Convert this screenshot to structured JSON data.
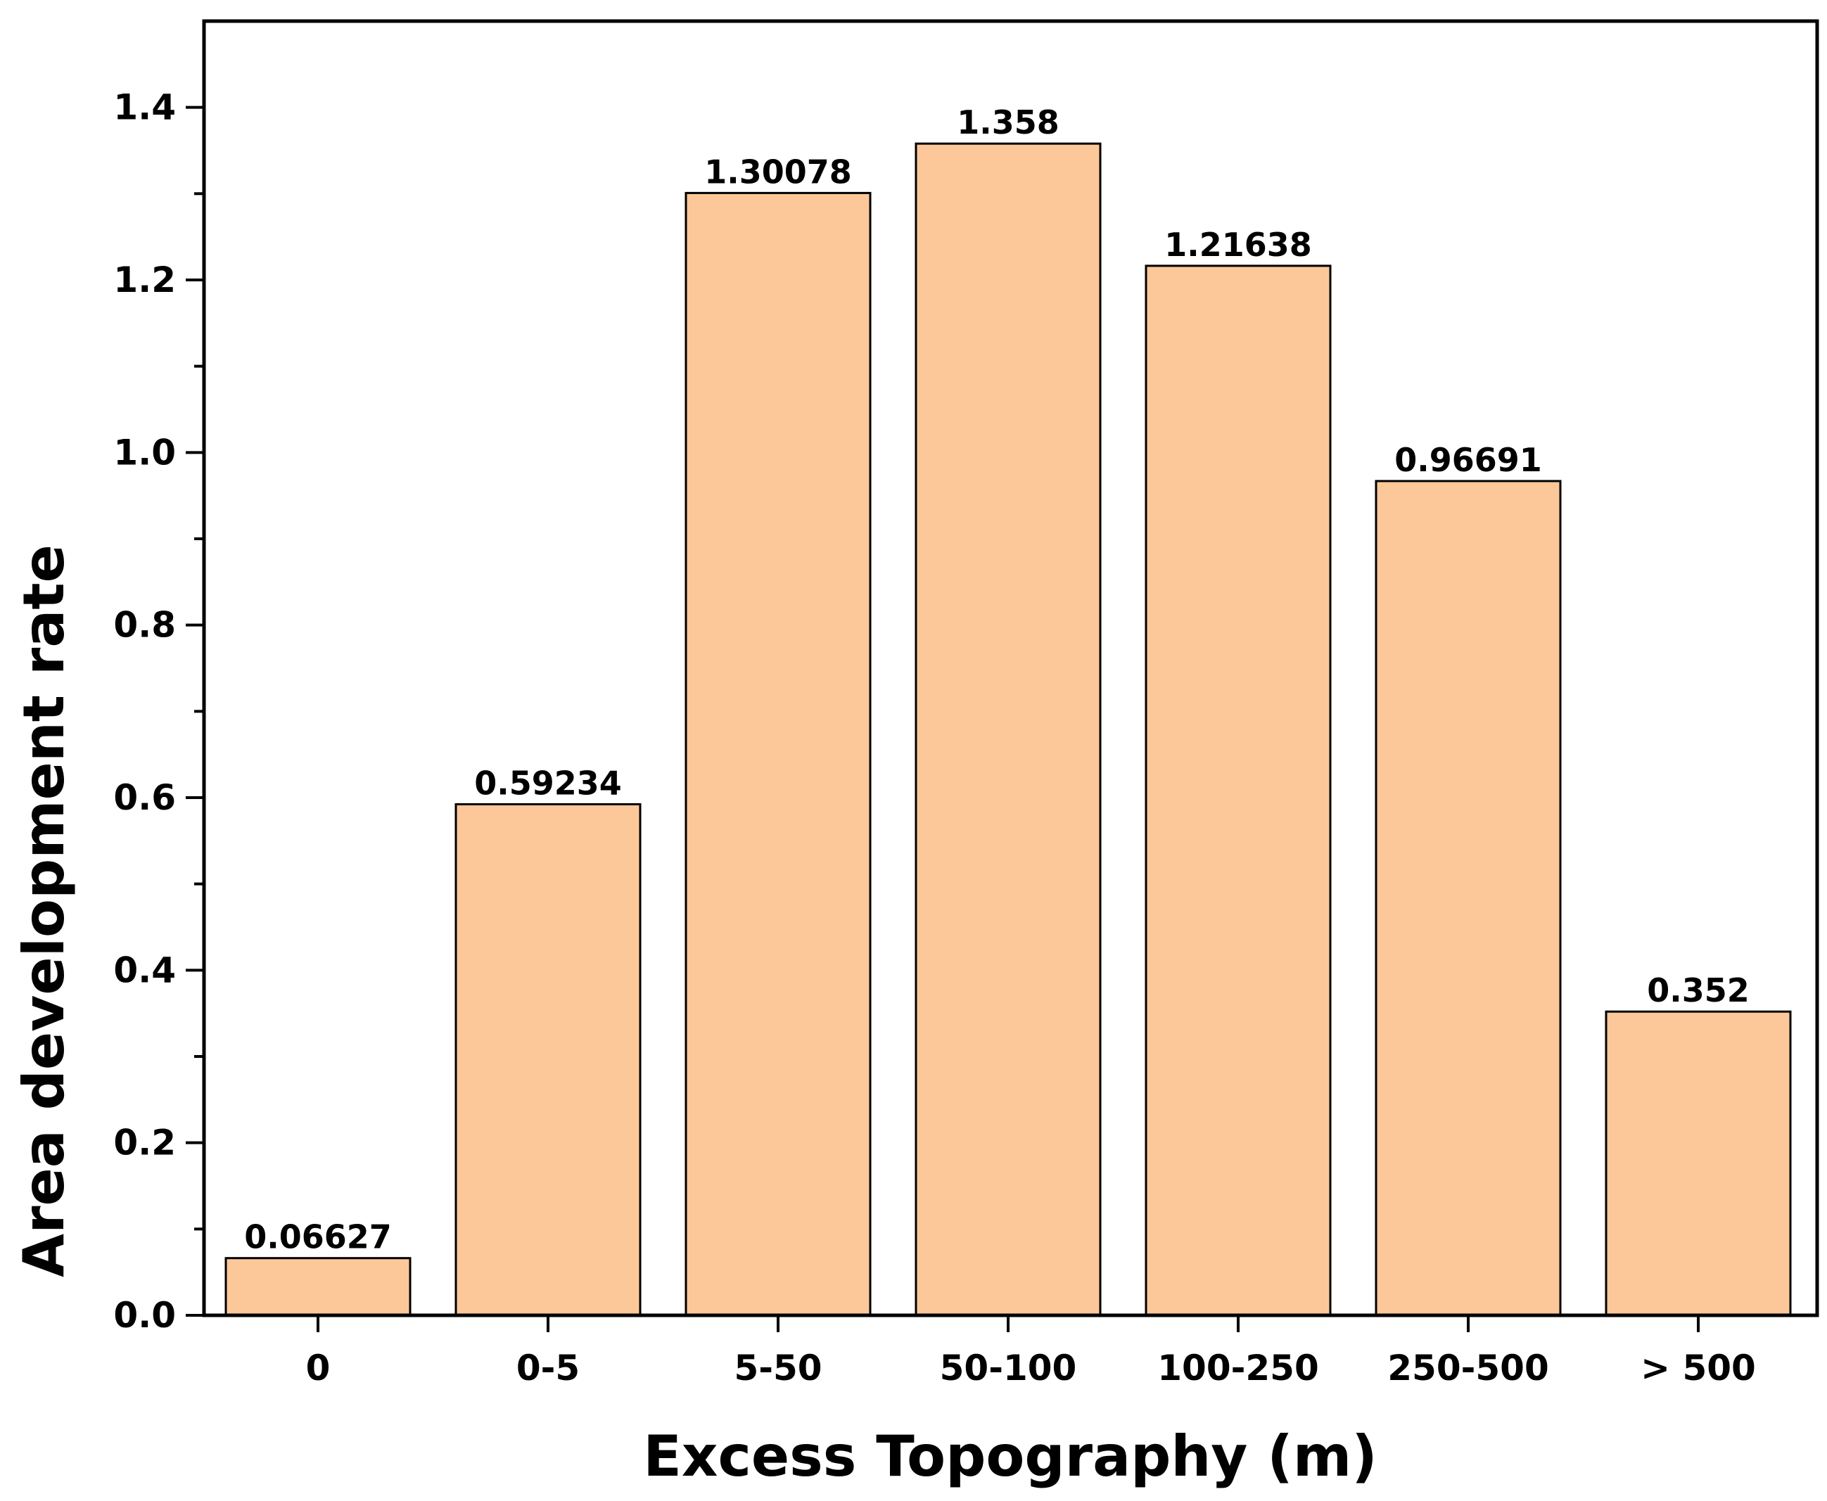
{
  "chart_data": {
    "type": "bar",
    "categories": [
      "0",
      "0-5",
      "5-50",
      "50-100",
      "100-250",
      "250-500",
      "> 500"
    ],
    "values": [
      0.06627,
      0.59234,
      1.30078,
      1.358,
      1.21638,
      0.96691,
      0.352
    ],
    "value_labels": [
      "0.06627",
      "0.59234",
      "1.30078",
      "1.358",
      "1.21638",
      "0.96691",
      "0.352"
    ],
    "xlabel": "Excess Topography (m)",
    "ylabel": "Area development rate",
    "ylim": [
      0,
      1.5
    ],
    "yticks": [
      0.0,
      0.2,
      0.4,
      0.6,
      0.8,
      1.0,
      1.2,
      1.4
    ],
    "ytick_labels": [
      "0.0",
      "0.2",
      "0.4",
      "0.6",
      "0.8",
      "1.0",
      "1.2",
      "1.4"
    ],
    "grid": false,
    "legend": "none",
    "colors": {
      "bar_fill": "#FDC899",
      "bar_stroke": "#000000",
      "axis": "#000000"
    }
  }
}
